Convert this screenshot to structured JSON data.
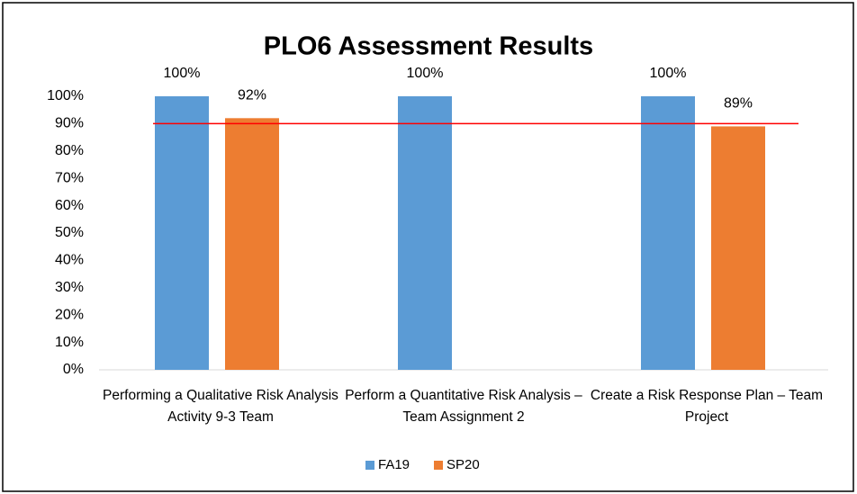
{
  "chart_data": {
    "type": "bar",
    "title": "PLO6 Assessment Results",
    "categories": [
      "Performing a Qualitative Risk Analysis Activity 9-3 Team",
      "Perform a Quantitative Risk Analysis – Team Assignment 2",
      "Create a Risk Response Plan – Team Project"
    ],
    "series": [
      {
        "name": "FA19",
        "color": "#5b9bd5",
        "values": [
          100,
          100,
          100
        ],
        "value_labels": [
          "100%",
          "100%",
          "100%"
        ]
      },
      {
        "name": "SP20",
        "color": "#ed7d31",
        "values": [
          92,
          null,
          89
        ],
        "value_labels": [
          "92%",
          null,
          "89%"
        ]
      }
    ],
    "ylim": [
      0,
      100
    ],
    "yticks": [
      {
        "value": 0,
        "label": "0%"
      },
      {
        "value": 10,
        "label": "10%"
      },
      {
        "value": 20,
        "label": "20%"
      },
      {
        "value": 30,
        "label": "30%"
      },
      {
        "value": 40,
        "label": "40%"
      },
      {
        "value": 50,
        "label": "50%"
      },
      {
        "value": 60,
        "label": "60%"
      },
      {
        "value": 70,
        "label": "70%"
      },
      {
        "value": 80,
        "label": "80%"
      },
      {
        "value": 90,
        "label": "90%"
      },
      {
        "value": 100,
        "label": "100%"
      }
    ],
    "grid": false,
    "reference_line": {
      "value": 90,
      "color": "#ff0000"
    },
    "legend": "bottom"
  }
}
